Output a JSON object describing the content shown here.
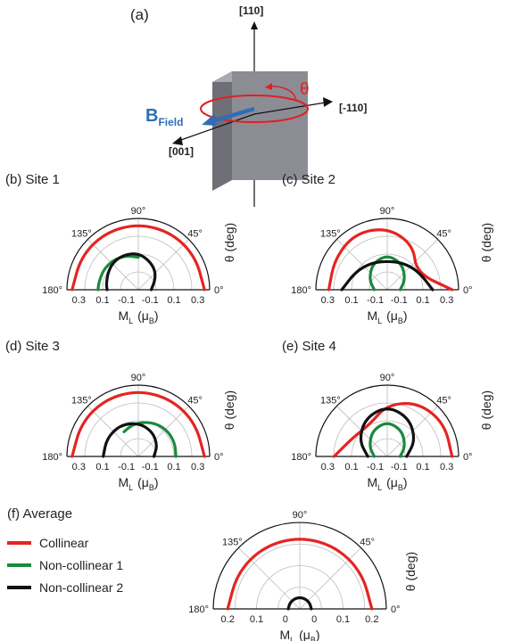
{
  "panel_a": {
    "label": "(a)",
    "axis_up": "[110]",
    "axis_right": "[-110]",
    "axis_out": "[001]",
    "field_main": "B",
    "field_sub": "Field",
    "angle_symbol": "θ",
    "colors": {
      "field": "#2f6db5",
      "angle": "#e02020",
      "plate": "#8c8c95"
    }
  },
  "legend": {
    "title": "(f)  Average",
    "items": [
      {
        "label": "Collinear",
        "color": "#e52421"
      },
      {
        "label": "Non-collinear 1",
        "color": "#1a8a3c"
      },
      {
        "label": "Non-collinear 2",
        "color": "#111111"
      }
    ]
  },
  "chart_data": [
    {
      "type": "polar-half",
      "label": "(b) Site 1",
      "theta_label": "θ (deg)",
      "radial_label_main": "M",
      "radial_label_sub": "L",
      "radial_unit_pre": "(μ",
      "radial_unit_sub": "B",
      "radial_unit_post": ")",
      "angle_ticks": [
        "0°",
        "45°",
        "90°",
        "135°",
        "180°"
      ],
      "radial_ticks": [
        "0.3",
        "0.1",
        "-0.1",
        "-0.1",
        "0.1",
        "0.3"
      ],
      "radial_range": [
        -0.2,
        0.35
      ],
      "series": [
        {
          "name": "Collinear",
          "color": "#e52421",
          "theta_deg": [
            0,
            30,
            60,
            90,
            120,
            150,
            180
          ],
          "r": [
            0.31,
            0.31,
            0.31,
            0.31,
            0.31,
            0.31,
            0.31
          ]
        },
        {
          "name": "Non-collinear 1",
          "color": "#1a8a3c",
          "theta_deg": [
            90,
            110,
            130,
            150,
            170,
            180
          ],
          "r": [
            0.05,
            0.08,
            0.1,
            0.11,
            0.11,
            0.11
          ]
        },
        {
          "name": "Non-collinear 2",
          "color": "#111111",
          "theta_deg": [
            0,
            30,
            50,
            70,
            90,
            110,
            130,
            150,
            170,
            180
          ],
          "r": [
            -0.1,
            -0.05,
            0.0,
            0.04,
            0.08,
            0.09,
            0.09,
            0.07,
            0.05,
            0.04
          ]
        }
      ]
    },
    {
      "type": "polar-half",
      "label": "(c) Site 2",
      "theta_label": "θ (deg)",
      "radial_label_main": "M",
      "radial_label_sub": "L",
      "radial_unit_pre": "(μ",
      "radial_unit_sub": "B",
      "radial_unit_post": ")",
      "angle_ticks": [
        "0°",
        "45°",
        "90°",
        "135°",
        "180°"
      ],
      "radial_ticks": [
        "0.3",
        "0.1",
        "-0.1",
        "-0.1",
        "0.1",
        "0.3"
      ],
      "radial_range": [
        -0.2,
        0.35
      ],
      "series": [
        {
          "name": "Collinear",
          "color": "#e52421",
          "theta_deg": [
            0,
            30,
            60,
            90,
            120,
            150,
            180
          ],
          "r": [
            0.3,
            0.06,
            0.2,
            0.28,
            0.3,
            0.27,
            0.25
          ]
        },
        {
          "name": "Non-collinear 1",
          "color": "#1a8a3c",
          "theta_deg": [
            0,
            30,
            60,
            90,
            120,
            150,
            180
          ],
          "r": [
            -0.1,
            -0.04,
            0.03,
            0.07,
            0.03,
            -0.04,
            -0.1
          ]
        },
        {
          "name": "Non-collinear 2",
          "color": "#111111",
          "theta_deg": [
            0,
            30,
            60,
            90,
            120,
            150,
            180
          ],
          "r": [
            0.15,
            0.08,
            0.04,
            0.02,
            0.04,
            0.08,
            0.15
          ]
        }
      ]
    },
    {
      "type": "polar-half",
      "label": "(d) Site 3",
      "theta_label": "θ (deg)",
      "radial_label_main": "M",
      "radial_label_sub": "L",
      "radial_unit_pre": "(μ",
      "radial_unit_sub": "B",
      "radial_unit_post": ")",
      "angle_ticks": [
        "0°",
        "45°",
        "90°",
        "135°",
        "180°"
      ],
      "radial_ticks": [
        "0.3",
        "0.1",
        "-0.1",
        "-0.1",
        "0.1",
        "0.3"
      ],
      "radial_range": [
        -0.2,
        0.35
      ],
      "series": [
        {
          "name": "Collinear",
          "color": "#e52421",
          "theta_deg": [
            0,
            30,
            60,
            90,
            120,
            150,
            180
          ],
          "r": [
            0.31,
            0.31,
            0.31,
            0.31,
            0.31,
            0.31,
            0.31
          ]
        },
        {
          "name": "Non-collinear 1",
          "color": "#1a8a3c",
          "theta_deg": [
            0,
            20,
            40,
            60,
            80,
            100,
            120
          ],
          "r": [
            0.09,
            0.1,
            0.1,
            0.09,
            0.07,
            0.05,
            0.02
          ]
        },
        {
          "name": "Non-collinear 2",
          "color": "#111111",
          "theta_deg": [
            0,
            30,
            60,
            90,
            120,
            150,
            180
          ],
          "r": [
            -0.08,
            -0.03,
            0.02,
            0.06,
            0.08,
            0.08,
            0.07
          ]
        }
      ]
    },
    {
      "type": "polar-half",
      "label": "(e) Site 4",
      "theta_label": "θ (deg)",
      "radial_label_main": "M",
      "radial_label_sub": "L",
      "radial_unit_pre": "(μ",
      "radial_unit_sub": "B",
      "radial_unit_post": ")",
      "angle_ticks": [
        "0°",
        "45°",
        "90°",
        "135°",
        "180°"
      ],
      "radial_ticks": [
        "0.3",
        "0.1",
        "-0.1",
        "-0.1",
        "0.1",
        "0.3"
      ],
      "radial_range": [
        -0.2,
        0.35
      ],
      "series": [
        {
          "name": "Collinear",
          "color": "#e52421",
          "theta_deg": [
            0,
            30,
            60,
            90,
            120,
            150,
            180
          ],
          "r": [
            0.3,
            0.31,
            0.28,
            0.2,
            0.08,
            0.1,
            0.21
          ]
        },
        {
          "name": "Non-collinear 1",
          "color": "#1a8a3c",
          "theta_deg": [
            0,
            30,
            60,
            90,
            120,
            150,
            180
          ],
          "r": [
            -0.1,
            -0.04,
            0.03,
            0.07,
            0.03,
            -0.04,
            -0.1
          ]
        },
        {
          "name": "Non-collinear 2",
          "color": "#111111",
          "theta_deg": [
            0,
            30,
            60,
            90,
            120,
            150,
            180
          ],
          "r": [
            -0.05,
            0.05,
            0.14,
            0.19,
            0.14,
            0.05,
            -0.05
          ]
        }
      ]
    },
    {
      "type": "polar-half",
      "label": "",
      "theta_label": "θ (deg)",
      "radial_label_main": "M",
      "radial_label_sub": "L",
      "radial_unit_pre": "(μ",
      "radial_unit_sub": "B",
      "radial_unit_post": ")",
      "angle_ticks": [
        "0°",
        "45°",
        "90°",
        "135°",
        "180°"
      ],
      "radial_ticks": [
        "0.2",
        "0.1",
        "0",
        "0",
        "0.1",
        "0.2"
      ],
      "radial_range": [
        0,
        0.3
      ],
      "series": [
        {
          "name": "Collinear",
          "color": "#e52421",
          "theta_deg": [
            0,
            30,
            60,
            90,
            120,
            150,
            180
          ],
          "r": [
            0.25,
            0.25,
            0.25,
            0.25,
            0.25,
            0.25,
            0.25
          ]
        },
        {
          "name": "Non-collinear 2",
          "color": "#111111",
          "theta_deg": [
            0,
            30,
            60,
            90,
            120,
            150,
            180
          ],
          "r": [
            0.04,
            0.04,
            0.04,
            0.04,
            0.04,
            0.04,
            0.04
          ]
        }
      ]
    }
  ]
}
